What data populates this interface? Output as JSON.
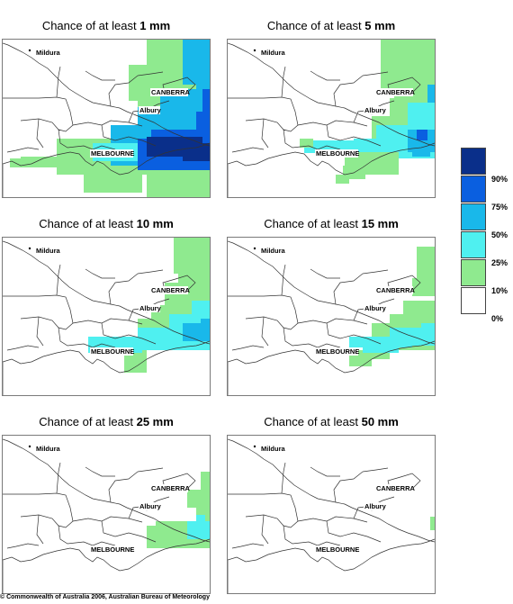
{
  "panels": [
    {
      "title_prefix": "Chance of at least ",
      "amount": "1 mm",
      "level": 0
    },
    {
      "title_prefix": "Chance of at least ",
      "amount": "5 mm",
      "level": 1
    },
    {
      "title_prefix": "Chance of at least ",
      "amount": "10 mm",
      "level": 2
    },
    {
      "title_prefix": "Chance of at least ",
      "amount": "15 mm",
      "level": 3
    },
    {
      "title_prefix": "Chance of at least ",
      "amount": "25 mm",
      "level": 4
    },
    {
      "title_prefix": "Chance of at least ",
      "amount": "50 mm",
      "level": 5
    }
  ],
  "places": {
    "mildura": "Mildura",
    "canberra": "CANBERRA",
    "albury": "Albury",
    "melbourne": "MELBOURNE"
  },
  "legend": {
    "colors": [
      "#0a2f8a",
      "#0a5fe0",
      "#19b8ea",
      "#4ff0f0",
      "#8fea8f",
      "#ffffff"
    ],
    "labels": [
      "90%",
      "75%",
      "50%",
      "25%",
      "10%",
      "0%"
    ]
  },
  "copyright": "© Commonwealth of Australia 2006, Australian Bureau of Meteorology"
}
